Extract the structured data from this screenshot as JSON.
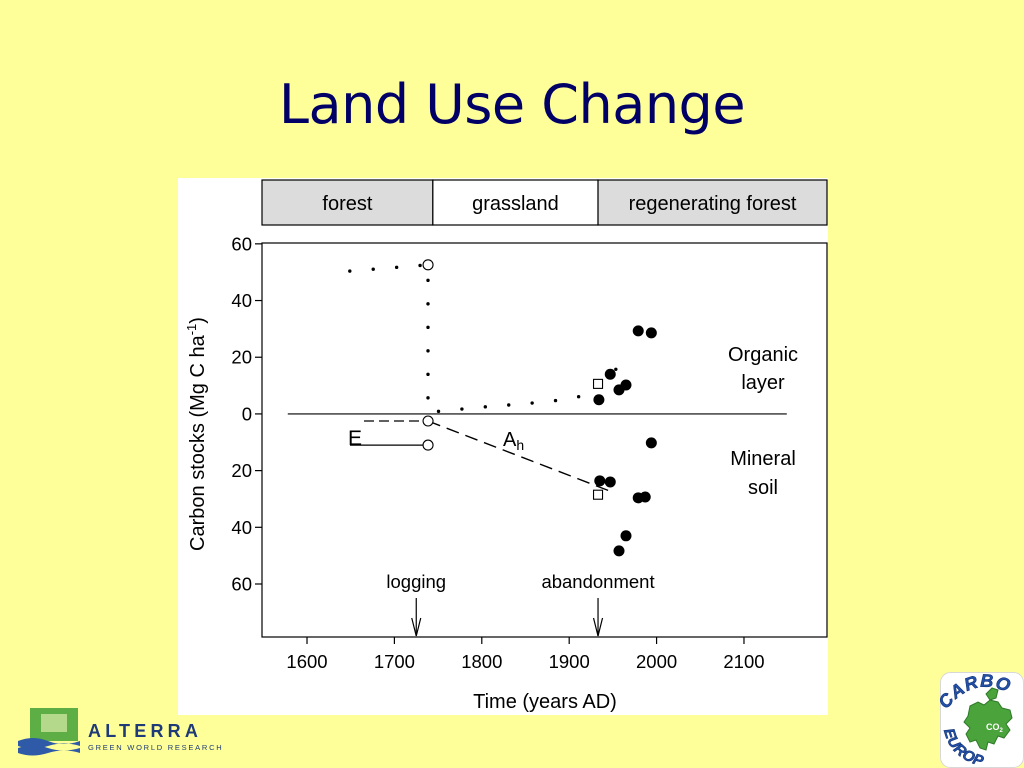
{
  "slide": {
    "title": "Land Use Change"
  },
  "colors": {
    "background": "#FFFF99",
    "title": "#000066",
    "header_shaded": "#DCDCDC",
    "header_plain": "#FFFFFF",
    "plot_ink": "#000000",
    "alterra_green": "#5DAF45",
    "alterra_light_green": "#B4D98A",
    "alterra_blue": "#1E3A78",
    "carbo_blue": "#2350A8",
    "carbo_green": "#4BA33C"
  },
  "chart_data": {
    "type": "scatter",
    "xlabel": "Time (years AD)",
    "ylabel": {
      "text": "Carbon stocks (Mg C ha",
      "superscript": "-1",
      "suffix": ")"
    },
    "xlim": [
      1548.5,
      2195
    ],
    "ylim": [
      -78.7,
      60.3
    ],
    "grid": false,
    "x_ticks": [
      1600,
      1700,
      1800,
      1900,
      2000,
      2100
    ],
    "y_ticks": [
      {
        "value": 60,
        "label": "60"
      },
      {
        "value": 40,
        "label": "40"
      },
      {
        "value": 20,
        "label": "20"
      },
      {
        "value": 0,
        "label": "0"
      },
      {
        "value": -20,
        "label": "20"
      },
      {
        "value": -40,
        "label": "40"
      },
      {
        "value": -60,
        "label": "60"
      }
    ],
    "phases": [
      {
        "label": "forest",
        "start": 1548.5,
        "end": 1744,
        "shaded": true
      },
      {
        "label": "grassland",
        "start": 1744,
        "end": 1933,
        "shaded": false
      },
      {
        "label": "regenerating forest",
        "start": 1933,
        "end": 2195,
        "shaded": true
      }
    ],
    "zero_line": {
      "y": 0,
      "x_start": 1578,
      "x_end": 2149
    },
    "organic_layer": {
      "label_lines": [
        "Organic",
        "layer"
      ],
      "trend_style": "dotted",
      "trend": [
        [
          1649,
          50.4
        ],
        [
          1738.5,
          52.6
        ],
        [
          1738.5,
          1.1
        ],
        [
          1750,
          0.9
        ],
        [
          1800,
          2.4
        ],
        [
          1850,
          3.6
        ],
        [
          1900,
          5.2
        ],
        [
          1920,
          6.8
        ],
        [
          1933,
          10.6
        ],
        [
          1952,
          15.2
        ],
        [
          1970,
          22
        ]
      ],
      "open_circles": [
        [
          1738.5,
          52.6
        ]
      ],
      "open_squares": [
        [
          1933,
          10.6
        ]
      ],
      "filled_circles": [
        [
          1934,
          5
        ],
        [
          1947,
          14
        ],
        [
          1957,
          8.5
        ],
        [
          1965,
          10.2
        ],
        [
          1979,
          29.3
        ],
        [
          1994,
          28.6
        ]
      ]
    },
    "mineral_soil": {
      "label_lines": [
        "Mineral",
        "soil"
      ],
      "trend_style": "dashed",
      "trend": [
        [
          1738.5,
          -2.5
        ],
        [
          1949,
          -27.5
        ]
      ],
      "open_circles": [
        [
          1738.5,
          -2.5
        ],
        [
          1738.5,
          -11
        ]
      ],
      "open_squares": [
        [
          1933,
          -28.5
        ]
      ],
      "filled_circles": [
        [
          1935,
          -23.6
        ],
        [
          1947,
          -24
        ],
        [
          1957,
          -48.3
        ],
        [
          1965,
          -43
        ],
        [
          1979,
          -29.6
        ],
        [
          1987,
          -29.3
        ],
        [
          1994,
          -10.2
        ]
      ]
    },
    "bracket_label": "E",
    "line_label": {
      "base": "A",
      "subscript": "h"
    },
    "events": [
      {
        "label": "logging",
        "year": 1725
      },
      {
        "label": "abandonment",
        "year": 1933
      }
    ]
  },
  "branding": {
    "alterra": {
      "name": "ALTERRA",
      "tagline": "GREEN WORLD RESEARCH",
      "icon": "alterra-logo-icon"
    },
    "carboeurope": {
      "top": "CARBO",
      "bottom": "EUROPE",
      "center": {
        "base": "CO",
        "subscript": "2"
      },
      "icon": "europe-map-icon"
    }
  }
}
